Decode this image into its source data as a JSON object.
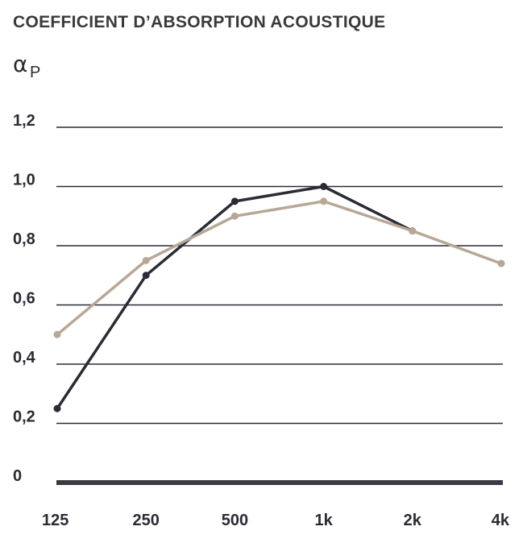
{
  "chart_data": {
    "type": "line",
    "title": "COEFFICIENT D’ABSORPTION ACOUSTIQUE",
    "ylabel": "α",
    "ylabel_subscript": "P",
    "xlabel": "",
    "categories": [
      "125",
      "250",
      "500",
      "1k",
      "2k",
      "4k"
    ],
    "yticks": [
      "0",
      "0,2",
      "0,4",
      "0,6",
      "0,8",
      "1,0",
      "1,2"
    ],
    "ytick_values": [
      0,
      0.2,
      0.4,
      0.6,
      0.8,
      1.0,
      1.2
    ],
    "ylim": [
      0,
      1.2
    ],
    "grid": true,
    "series": [
      {
        "color": "#2b2b36",
        "values": [
          0.25,
          0.7,
          0.95,
          1.0,
          0.85,
          null
        ]
      },
      {
        "color": "#b8a796",
        "values": [
          0.5,
          0.75,
          0.9,
          0.95,
          0.85,
          0.74
        ]
      }
    ]
  }
}
